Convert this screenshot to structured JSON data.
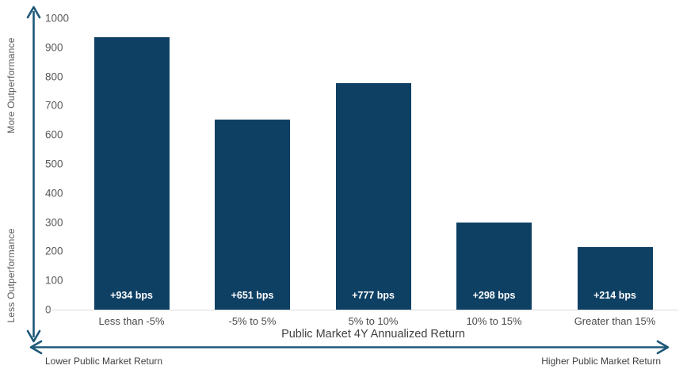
{
  "chart_data": {
    "type": "bar",
    "title": "",
    "xlabel": "Public Market 4Y Annualized Return",
    "ylabel": "",
    "ylim": [
      0,
      1000
    ],
    "grid": false,
    "legend": false,
    "categories": [
      "Less than -5%",
      "-5% to 5%",
      "5% to 10%",
      "10% to 15%",
      "Greater than 15%"
    ],
    "values": [
      934,
      651,
      777,
      298,
      214
    ],
    "bar_value_labels": [
      "+934 bps",
      "+651 bps",
      "+777 bps",
      "+298 bps",
      "+214 bps"
    ],
    "yticks": [
      1000,
      900,
      800,
      700,
      600,
      500,
      400,
      300,
      200,
      100,
      0
    ],
    "y_axis_caption_top": "More Outperformance",
    "y_axis_caption_bottom": "Less Outperformance",
    "x_axis_caption_left": "Lower Public Market Return",
    "x_axis_caption_right": "Higher Public Market Return",
    "colors": {
      "bar": "#0e4064",
      "axis_arrow": "#1e5878",
      "tick_text": "#595959",
      "category_text": "#4a4a4a",
      "bar_label_text": "#ffffff",
      "baseline": "#dcdcdc"
    }
  }
}
